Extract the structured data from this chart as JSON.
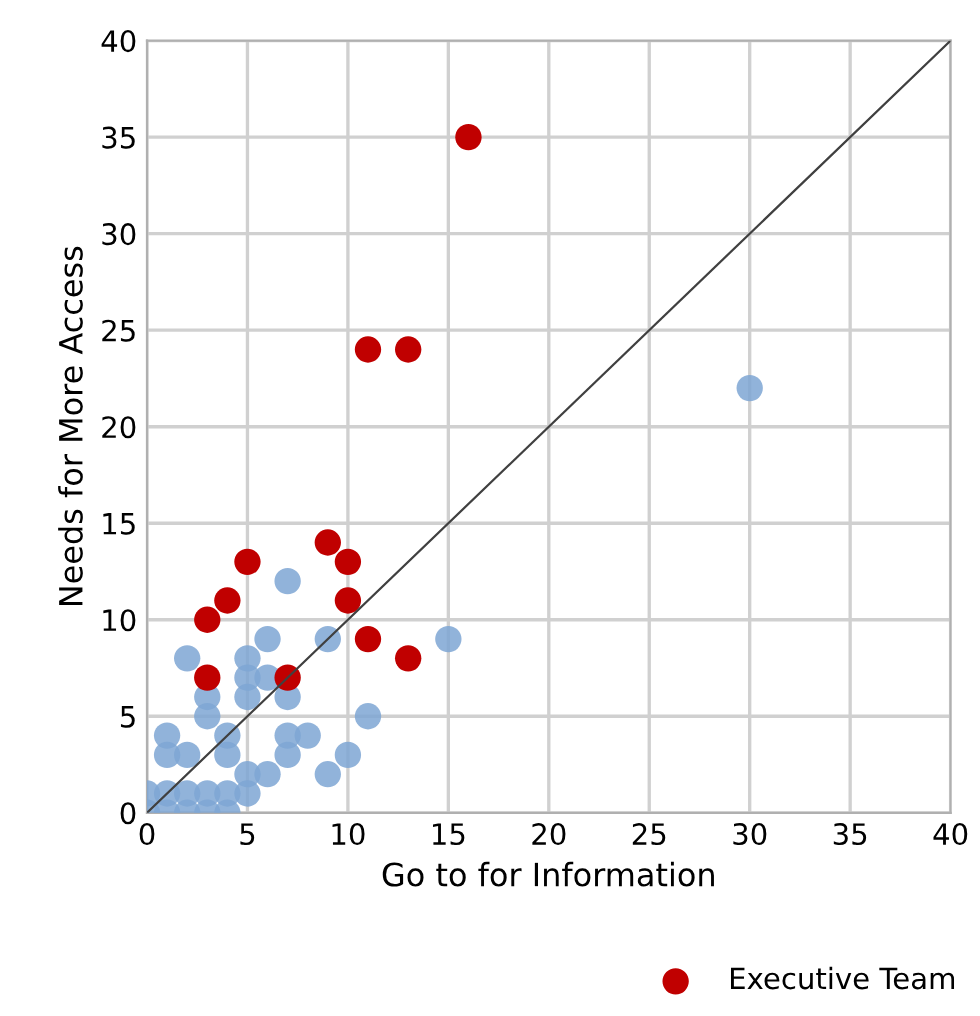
{
  "chart_data": {
    "type": "scatter",
    "xlabel": "Go to for Information",
    "ylabel": "Needs for More Access",
    "xlim": [
      0,
      40
    ],
    "ylim": [
      0,
      40
    ],
    "xticks": [
      0,
      5,
      10,
      15,
      20,
      25,
      30,
      35,
      40
    ],
    "yticks": [
      0,
      5,
      10,
      15,
      20,
      25,
      30,
      35,
      40
    ],
    "grid": true,
    "legend": "bottom right",
    "marker": "circle",
    "series": [
      {
        "color": "#7ea6d3",
        "x": [
          30,
          15,
          11,
          10,
          9,
          9,
          8,
          7,
          7,
          7,
          7,
          6,
          6,
          6,
          5,
          5,
          5,
          5,
          5,
          4,
          4,
          4,
          4,
          3,
          3,
          3,
          3,
          2,
          2,
          2,
          2,
          1,
          1,
          1,
          1,
          0,
          0
        ],
        "values": [
          22,
          9,
          5,
          3,
          9,
          2,
          4,
          12,
          6,
          4,
          3,
          9,
          7,
          2,
          8,
          7,
          6,
          2,
          1,
          4,
          3,
          1,
          0,
          6,
          5,
          1,
          0,
          8,
          3,
          1,
          0,
          4,
          3,
          1,
          0,
          1,
          0
        ]
      },
      {
        "name": "Executive Team",
        "color": "#c00000",
        "x": [
          16,
          11,
          13,
          9,
          10,
          5,
          4,
          10,
          3,
          11,
          13,
          3,
          7
        ],
        "values": [
          35,
          24,
          24,
          14,
          13,
          13,
          11,
          11,
          10,
          9,
          8,
          7,
          7
        ]
      },
      {
        "type": "line",
        "color": "#404040",
        "x": [
          0,
          40
        ],
        "values": [
          0,
          40
        ],
        "marker": "none"
      }
    ]
  }
}
